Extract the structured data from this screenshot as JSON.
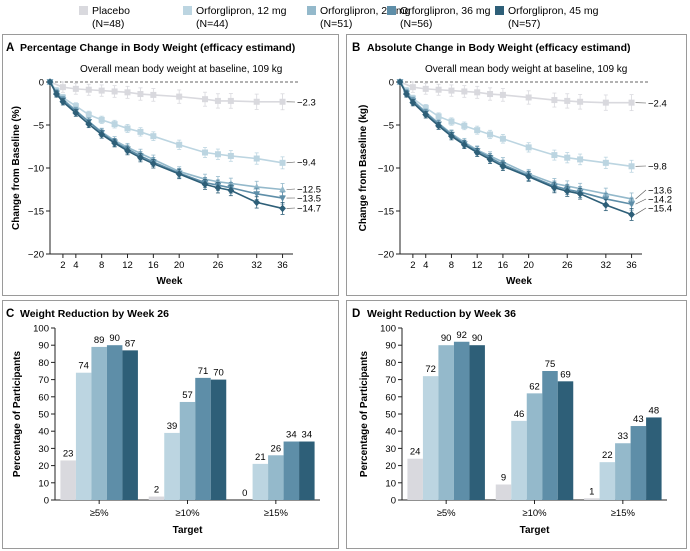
{
  "colors": {
    "placebo": "#d9d9de",
    "s12": "#bcd5e1",
    "s24": "#94b9cb",
    "s36": "#5e8ea8",
    "s45": "#2e5f78",
    "frame": "#9a9a9a"
  },
  "legend": [
    {
      "name": "Placebo",
      "n": "(N=48)"
    },
    {
      "name": "Orforglipron, 12 mg",
      "n": "(N=44)"
    },
    {
      "name": "Orforglipron, 24 mg",
      "n": "(N=51)"
    },
    {
      "name": "Orforglipron, 36 mg",
      "n": "(N=56)"
    },
    {
      "name": "Orforglipron, 45 mg",
      "n": "(N=57)"
    }
  ],
  "panels": {
    "A": {
      "letter": "A",
      "title": "Percentage Change in Body Weight (efficacy estimand)",
      "note": "Overall mean body weight at baseline, 109 kg"
    },
    "B": {
      "letter": "B",
      "title": "Absolute Change in Body Weight (efficacy estimand)",
      "note": "Overall mean body weight at baseline, 109 kg"
    },
    "C": {
      "letter": "C",
      "title": "Weight Reduction by Week 26"
    },
    "D": {
      "letter": "D",
      "title": "Weight Reduction by Week 36"
    }
  },
  "chart_data": [
    {
      "type": "line",
      "panel": "A",
      "title": "Percentage Change in Body Weight (efficacy estimand)",
      "subtitle": "Overall mean body weight at baseline, 109 kg",
      "xlabel": "Week",
      "ylabel": "Change from Baseline (%)",
      "xticks": [
        2,
        4,
        8,
        12,
        16,
        20,
        26,
        32,
        36
      ],
      "yticks": [
        0,
        -5,
        -10,
        -15,
        -20
      ],
      "ytick_labels": [
        "0",
        "−5",
        "−10",
        "−15",
        "−20"
      ],
      "xlim": [
        0,
        37
      ],
      "ylim": [
        -20,
        0
      ],
      "series": [
        {
          "name": "Placebo",
          "x": [
            0,
            2,
            4,
            6,
            8,
            10,
            12,
            14,
            16,
            20,
            24,
            26,
            28,
            32,
            36
          ],
          "values": [
            0,
            -0.6,
            -0.8,
            -0.9,
            -1.0,
            -1.1,
            -1.2,
            -1.4,
            -1.5,
            -1.7,
            -2.0,
            -2.2,
            -2.2,
            -2.3,
            -2.3
          ],
          "end_label": "−2.3"
        },
        {
          "name": "Orforglipron, 12 mg",
          "x": [
            0,
            1,
            2,
            4,
            6,
            8,
            10,
            12,
            14,
            16,
            20,
            24,
            26,
            28,
            32,
            36
          ],
          "values": [
            0,
            -1.0,
            -1.8,
            -2.8,
            -3.8,
            -4.4,
            -4.9,
            -5.4,
            -5.8,
            -6.3,
            -7.3,
            -8.2,
            -8.4,
            -8.6,
            -8.9,
            -9.4
          ],
          "end_label": "−9.4"
        },
        {
          "name": "Orforglipron, 24 mg",
          "x": [
            0,
            1,
            2,
            4,
            6,
            8,
            10,
            12,
            14,
            16,
            20,
            24,
            26,
            28,
            32,
            36
          ],
          "values": [
            0,
            -1.2,
            -2.0,
            -3.3,
            -4.6,
            -5.8,
            -6.8,
            -7.6,
            -8.3,
            -9.0,
            -10.4,
            -11.3,
            -11.6,
            -11.8,
            -12.2,
            -12.5
          ],
          "end_label": "−12.5"
        },
        {
          "name": "Orforglipron, 36 mg",
          "x": [
            0,
            1,
            2,
            4,
            6,
            8,
            10,
            12,
            14,
            16,
            20,
            24,
            26,
            28,
            32,
            36
          ],
          "values": [
            0,
            -1.3,
            -2.1,
            -3.4,
            -4.6,
            -5.9,
            -7.0,
            -7.8,
            -8.6,
            -9.3,
            -10.6,
            -11.7,
            -12.0,
            -12.3,
            -13.0,
            -13.5
          ],
          "end_label": "−13.5"
        },
        {
          "name": "Orforglipron, 45 mg",
          "x": [
            0,
            1,
            2,
            4,
            6,
            8,
            10,
            12,
            14,
            16,
            20,
            24,
            26,
            28,
            32,
            36
          ],
          "values": [
            0,
            -1.4,
            -2.3,
            -3.6,
            -4.9,
            -6.1,
            -7.1,
            -8.0,
            -8.8,
            -9.5,
            -10.7,
            -11.9,
            -12.3,
            -12.6,
            -14.0,
            -14.7
          ],
          "end_label": "−14.7"
        }
      ]
    },
    {
      "type": "line",
      "panel": "B",
      "title": "Absolute Change in Body Weight (efficacy estimand)",
      "subtitle": "Overall mean body weight at baseline, 109 kg",
      "xlabel": "Week",
      "ylabel": "Change from Baseline (kg)",
      "xticks": [
        2,
        4,
        8,
        12,
        16,
        20,
        26,
        32,
        36
      ],
      "yticks": [
        0,
        -5,
        -10,
        -15,
        -20
      ],
      "ytick_labels": [
        "0",
        "−5",
        "−10",
        "−15",
        "−20"
      ],
      "xlim": [
        0,
        37
      ],
      "ylim": [
        -20,
        0
      ],
      "series": [
        {
          "name": "Placebo",
          "x": [
            0,
            2,
            4,
            6,
            8,
            10,
            12,
            14,
            16,
            20,
            24,
            26,
            28,
            32,
            36
          ],
          "values": [
            0,
            -0.6,
            -0.8,
            -0.9,
            -1.0,
            -1.1,
            -1.2,
            -1.4,
            -1.5,
            -1.8,
            -2.1,
            -2.2,
            -2.3,
            -2.4,
            -2.4
          ],
          "end_label": "−2.4"
        },
        {
          "name": "Orforglipron, 12 mg",
          "x": [
            0,
            1,
            2,
            4,
            6,
            8,
            10,
            12,
            14,
            16,
            20,
            24,
            26,
            28,
            32,
            36
          ],
          "values": [
            0,
            -1.0,
            -1.9,
            -3.0,
            -4.0,
            -4.6,
            -5.1,
            -5.6,
            -6.1,
            -6.6,
            -7.6,
            -8.5,
            -8.8,
            -9.0,
            -9.4,
            -9.8
          ],
          "end_label": "−9.8"
        },
        {
          "name": "Orforglipron, 24 mg",
          "x": [
            0,
            1,
            2,
            4,
            6,
            8,
            10,
            12,
            14,
            16,
            20,
            24,
            26,
            28,
            32,
            36
          ],
          "values": [
            0,
            -1.2,
            -2.1,
            -3.5,
            -4.8,
            -6.0,
            -7.0,
            -7.9,
            -8.6,
            -9.3,
            -10.7,
            -11.8,
            -12.1,
            -12.4,
            -13.0,
            -13.6
          ],
          "end_label": "−13.6"
        },
        {
          "name": "Orforglipron, 36 mg",
          "x": [
            0,
            1,
            2,
            4,
            6,
            8,
            10,
            12,
            14,
            16,
            20,
            24,
            26,
            28,
            32,
            36
          ],
          "values": [
            0,
            -1.3,
            -2.2,
            -3.6,
            -4.9,
            -6.1,
            -7.2,
            -8.0,
            -8.8,
            -9.6,
            -10.9,
            -12.1,
            -12.5,
            -12.8,
            -13.6,
            -14.2
          ],
          "end_label": "−14.2"
        },
        {
          "name": "Orforglipron, 45 mg",
          "x": [
            0,
            1,
            2,
            4,
            6,
            8,
            10,
            12,
            14,
            16,
            20,
            24,
            26,
            28,
            32,
            36
          ],
          "values": [
            0,
            -1.4,
            -2.4,
            -3.8,
            -5.1,
            -6.3,
            -7.3,
            -8.2,
            -9.0,
            -9.8,
            -11.0,
            -12.3,
            -12.7,
            -13.0,
            -14.3,
            -15.4
          ],
          "end_label": "−15.4"
        }
      ]
    },
    {
      "type": "bar",
      "panel": "C",
      "title": "Weight Reduction by Week 26",
      "xlabel": "Target",
      "ylabel": "Percentage of Participants",
      "categories": [
        "≥5%",
        "≥10%",
        "≥15%"
      ],
      "ylim": [
        0,
        100
      ],
      "yticks": [
        0,
        10,
        20,
        30,
        40,
        50,
        60,
        70,
        80,
        90,
        100
      ],
      "series": [
        {
          "name": "Placebo",
          "values": [
            23,
            2,
            0
          ]
        },
        {
          "name": "Orforglipron, 12 mg",
          "values": [
            74,
            39,
            21
          ]
        },
        {
          "name": "Orforglipron, 24 mg",
          "values": [
            89,
            57,
            26
          ]
        },
        {
          "name": "Orforglipron, 36 mg",
          "values": [
            90,
            71,
            34
          ]
        },
        {
          "name": "Orforglipron, 45 mg",
          "values": [
            87,
            70,
            34
          ]
        }
      ]
    },
    {
      "type": "bar",
      "panel": "D",
      "title": "Weight Reduction by Week 36",
      "xlabel": "Target",
      "ylabel": "Percentage of Participants",
      "categories": [
        "≥5%",
        "≥10%",
        "≥15%"
      ],
      "ylim": [
        0,
        100
      ],
      "yticks": [
        0,
        10,
        20,
        30,
        40,
        50,
        60,
        70,
        80,
        90,
        100
      ],
      "series": [
        {
          "name": "Placebo",
          "values": [
            24,
            9,
            1
          ]
        },
        {
          "name": "Orforglipron, 12 mg",
          "values": [
            72,
            46,
            22
          ]
        },
        {
          "name": "Orforglipron, 24 mg",
          "values": [
            90,
            62,
            33
          ]
        },
        {
          "name": "Orforglipron, 36 mg",
          "values": [
            92,
            75,
            43
          ]
        },
        {
          "name": "Orforglipron, 45 mg",
          "values": [
            90,
            69,
            48
          ]
        }
      ]
    }
  ]
}
